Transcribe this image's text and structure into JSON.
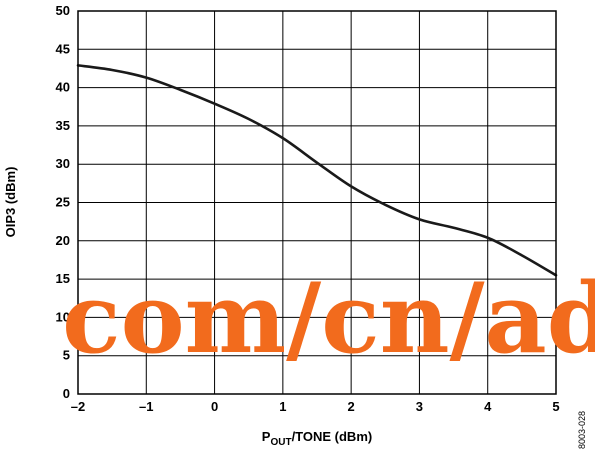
{
  "chart_data": {
    "type": "line",
    "title": "",
    "xlabel": {
      "main": "P",
      "sub": "OUT",
      "rest": "/TONE (dBm)"
    },
    "ylabel": "OIP3 (dBm)",
    "xlim": [
      -2,
      5
    ],
    "ylim": [
      0,
      50
    ],
    "x_ticks": [
      -2,
      -1,
      0,
      1,
      2,
      3,
      4,
      5
    ],
    "x_tick_labels": [
      "–2",
      "–1",
      "0",
      "1",
      "2",
      "3",
      "4",
      "5"
    ],
    "y_ticks": [
      0,
      5,
      10,
      15,
      20,
      25,
      30,
      35,
      40,
      45,
      50
    ],
    "y_tick_labels": [
      "0",
      "5",
      "10",
      "15",
      "20",
      "25",
      "30",
      "35",
      "40",
      "45",
      "50"
    ],
    "grid": true,
    "series": [
      {
        "color": "#1a1a1a",
        "x": [
          -2,
          -1.5,
          -1,
          -0.5,
          0,
          0.5,
          1,
          1.5,
          2,
          2.5,
          3,
          3.5,
          4,
          4.5,
          5
        ],
        "y": [
          42.9,
          42.3,
          41.3,
          39.7,
          37.9,
          35.9,
          33.4,
          30.2,
          27.1,
          24.7,
          22.8,
          21.7,
          20.4,
          18.1,
          15.5
        ]
      }
    ]
  },
  "watermark": {
    "text": "com/cn/ad",
    "color": "#f26b1d"
  },
  "figure_id": "8003-028"
}
